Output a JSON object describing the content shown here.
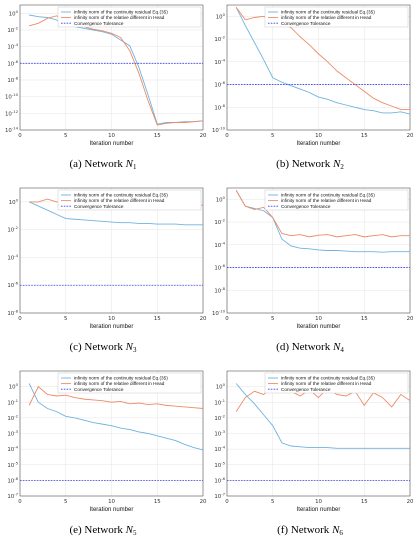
{
  "legend_labels": {
    "cont": "infinity norm of the continuity residual Eq.(35)",
    "head": "infinity norm of the relative different in Head",
    "tol": "Convergence Tolerance"
  },
  "colors": {
    "cont": "#6fb3e0",
    "head": "#ee8a68",
    "tol": "#3a3cf0"
  },
  "chart_data": [
    {
      "type": "line",
      "caption": {
        "prefix": "(a) Network",
        "symbol": "N",
        "sub": "1"
      },
      "xlabel": "Iteration number",
      "xlim": [
        0,
        20
      ],
      "x_ticks": [
        0,
        5,
        10,
        15,
        20
      ],
      "y_scale": "log",
      "ylim_exp": [
        -14,
        1
      ],
      "y_tick_exps": [
        0,
        -2,
        -4,
        -6,
        -8,
        -10,
        -12,
        -14
      ],
      "grid": true,
      "legend_position": "top-right",
      "series": [
        {
          "key": "cont",
          "x": [
            1,
            2,
            3,
            4,
            5,
            6,
            7,
            8,
            9,
            10,
            11,
            12,
            13,
            14,
            15,
            16,
            17,
            18,
            19,
            20
          ],
          "y_exp": [
            -0.2,
            -0.4,
            -0.5,
            -0.8,
            -1.4,
            -1.6,
            -1.8,
            -2,
            -2.2,
            -2.5,
            -3.2,
            -3.9,
            -6.5,
            -9.8,
            -13.3,
            -13.1,
            -13.1,
            -13.0,
            -13.0,
            -12.9
          ]
        },
        {
          "key": "head",
          "x": [
            1,
            2,
            3,
            4,
            5,
            6,
            7,
            8,
            9,
            10,
            11,
            12,
            13,
            14,
            15,
            16,
            17,
            18,
            19,
            20
          ],
          "y_exp": [
            -1.5,
            -1.2,
            -0.6,
            -0.3,
            -0.8,
            -1.3,
            -1.6,
            -1.9,
            -2.1,
            -2.4,
            -2.9,
            -4.5,
            -7.2,
            -10.5,
            -13.4,
            -13.2,
            -13.1,
            -13.1,
            -13.0,
            -12.9
          ]
        },
        {
          "key": "tol",
          "x": [
            0,
            20
          ],
          "y_exp": [
            -6,
            -6
          ]
        }
      ]
    },
    {
      "type": "line",
      "caption": {
        "prefix": "(b) Network",
        "symbol": "N",
        "sub": "2"
      },
      "xlabel": "Iteration number",
      "xlim": [
        0,
        20
      ],
      "x_ticks": [
        0,
        5,
        10,
        15,
        20
      ],
      "y_scale": "log",
      "ylim_exp": [
        -10,
        1
      ],
      "y_tick_exps": [
        0,
        -2,
        -4,
        -6,
        -8,
        -10
      ],
      "grid": true,
      "legend_position": "top-right",
      "series": [
        {
          "key": "cont",
          "x": [
            1,
            2,
            3,
            4,
            5,
            6,
            7,
            8,
            9,
            10,
            11,
            12,
            13,
            14,
            15,
            16,
            17,
            18,
            19,
            20
          ],
          "y_exp": [
            0.8,
            -0.8,
            -2.3,
            -3.8,
            -5.4,
            -5.8,
            -6.1,
            -6.4,
            -6.7,
            -7.1,
            -7.3,
            -7.6,
            -7.8,
            -8,
            -8.2,
            -8.3,
            -8.5,
            -8.5,
            -8.4,
            -8.6
          ]
        },
        {
          "key": "head",
          "x": [
            1,
            2,
            3,
            4,
            5,
            6,
            7,
            8,
            9,
            10,
            11,
            12,
            13,
            14,
            15,
            16,
            17,
            18,
            19,
            20
          ],
          "y_exp": [
            0.8,
            -0.3,
            -0.1,
            0,
            -0.4,
            -0.6,
            -1.0,
            -1.8,
            -2.5,
            -3.3,
            -4.0,
            -4.8,
            -5.4,
            -6.0,
            -6.6,
            -7.2,
            -7.6,
            -7.9,
            -8.2,
            -8.2
          ]
        },
        {
          "key": "tol",
          "x": [
            0,
            20
          ],
          "y_exp": [
            -6,
            -6
          ]
        }
      ]
    },
    {
      "type": "line",
      "caption": {
        "prefix": "(c) Network",
        "symbol": "N",
        "sub": "3"
      },
      "xlabel": "Iteration number",
      "xlim": [
        0,
        20
      ],
      "x_ticks": [
        0,
        5,
        10,
        15,
        20
      ],
      "y_scale": "log",
      "ylim_exp": [
        -8,
        1
      ],
      "y_tick_exps": [
        0,
        -2,
        -4,
        -6,
        -8
      ],
      "grid": true,
      "legend_position": "top-right",
      "series": [
        {
          "key": "cont",
          "x": [
            1,
            2,
            3,
            4,
            5,
            6,
            7,
            8,
            9,
            10,
            11,
            12,
            13,
            14,
            15,
            16,
            17,
            18,
            19,
            20
          ],
          "y_exp": [
            0,
            -0.3,
            -0.6,
            -0.9,
            -1.2,
            -1.25,
            -1.3,
            -1.35,
            -1.4,
            -1.45,
            -1.5,
            -1.5,
            -1.55,
            -1.55,
            -1.6,
            -1.6,
            -1.6,
            -1.65,
            -1.65,
            -1.65
          ]
        },
        {
          "key": "head",
          "x": [
            1,
            2,
            3,
            4,
            5,
            6,
            7,
            8,
            9,
            10,
            11,
            12,
            13,
            14,
            15,
            16,
            17,
            18,
            19,
            20
          ],
          "y_exp": [
            0,
            0,
            0.2,
            0,
            0,
            -0.05,
            0,
            -0.05,
            -0.1,
            -0.1,
            -0.1,
            -0.15,
            -0.15,
            -0.2,
            -0.15,
            -0.2,
            -0.2,
            -0.25,
            -0.2,
            -0.25
          ]
        },
        {
          "key": "tol",
          "x": [
            0,
            20
          ],
          "y_exp": [
            -6,
            -6
          ]
        }
      ]
    },
    {
      "type": "line",
      "caption": {
        "prefix": "(d) Network",
        "symbol": "N",
        "sub": "4"
      },
      "xlabel": "Iteration number",
      "xlim": [
        0,
        20
      ],
      "x_ticks": [
        0,
        5,
        10,
        15,
        20
      ],
      "y_scale": "log",
      "ylim_exp": [
        -10,
        1
      ],
      "y_tick_exps": [
        0,
        -2,
        -4,
        -6,
        -8,
        -10
      ],
      "grid": true,
      "legend_position": "top-right",
      "series": [
        {
          "key": "cont",
          "x": [
            1,
            2,
            3,
            4,
            5,
            6,
            7,
            8,
            9,
            10,
            11,
            12,
            13,
            14,
            15,
            16,
            17,
            18,
            19,
            20
          ],
          "y_exp": [
            0.8,
            -0.6,
            -0.8,
            -1.0,
            -1.6,
            -3.5,
            -4.1,
            -4.3,
            -4.35,
            -4.45,
            -4.5,
            -4.5,
            -4.55,
            -4.6,
            -4.6,
            -4.6,
            -4.65,
            -4.6,
            -4.6,
            -4.6
          ]
        },
        {
          "key": "head",
          "x": [
            1,
            2,
            3,
            4,
            5,
            6,
            7,
            8,
            9,
            10,
            11,
            12,
            13,
            14,
            15,
            16,
            17,
            18,
            19,
            20
          ],
          "y_exp": [
            0.8,
            -0.6,
            -0.9,
            -0.7,
            -1.6,
            -3.0,
            -3.2,
            -3.1,
            -3.3,
            -3.15,
            -3.1,
            -3.3,
            -3.2,
            -3.1,
            -3.3,
            -3.2,
            -3.1,
            -3.3,
            -3.2,
            -3.2
          ]
        },
        {
          "key": "tol",
          "x": [
            0,
            20
          ],
          "y_exp": [
            -6,
            -6
          ]
        }
      ]
    },
    {
      "type": "line",
      "caption": {
        "prefix": "(e) Network",
        "symbol": "N",
        "sub": "5"
      },
      "xlabel": "Iteration number",
      "xlim": [
        0,
        20
      ],
      "x_ticks": [
        0,
        5,
        10,
        15,
        20
      ],
      "y_scale": "log",
      "ylim_exp": [
        -7,
        1
      ],
      "y_tick_exps": [
        0,
        -1,
        -2,
        -3,
        -4,
        -5,
        -6,
        -7
      ],
      "grid": true,
      "legend_position": "top-right",
      "series": [
        {
          "key": "cont",
          "x": [
            1,
            2,
            3,
            4,
            5,
            6,
            7,
            8,
            9,
            10,
            11,
            12,
            13,
            14,
            15,
            16,
            17,
            18,
            19,
            20
          ],
          "y_exp": [
            0.2,
            -1.0,
            -1.4,
            -1.6,
            -1.9,
            -2.0,
            -2.15,
            -2.3,
            -2.4,
            -2.5,
            -2.65,
            -2.75,
            -2.9,
            -3.0,
            -3.15,
            -3.3,
            -3.45,
            -3.7,
            -3.9,
            -4.05
          ]
        },
        {
          "key": "head",
          "x": [
            1,
            2,
            3,
            4,
            5,
            6,
            7,
            8,
            9,
            10,
            11,
            12,
            13,
            14,
            15,
            16,
            17,
            18,
            19,
            20
          ],
          "y_exp": [
            -1.2,
            0,
            -0.5,
            -0.6,
            -0.55,
            -0.7,
            -0.8,
            -0.85,
            -0.9,
            -1.0,
            -0.95,
            -1.1,
            -1.05,
            -1.15,
            -1.1,
            -1.2,
            -1.25,
            -1.3,
            -1.35,
            -1.4
          ]
        },
        {
          "key": "tol",
          "x": [
            0,
            20
          ],
          "y_exp": [
            -6,
            -6
          ]
        }
      ]
    },
    {
      "type": "line",
      "caption": {
        "prefix": "(f) Network",
        "symbol": "N",
        "sub": "6"
      },
      "xlabel": "Iteration number",
      "xlim": [
        0,
        20
      ],
      "x_ticks": [
        0,
        5,
        10,
        15,
        20
      ],
      "y_scale": "log",
      "ylim_exp": [
        -7,
        1
      ],
      "y_tick_exps": [
        0,
        -1,
        -2,
        -3,
        -4,
        -5,
        -6,
        -7
      ],
      "grid": true,
      "legend_position": "top-right",
      "series": [
        {
          "key": "cont",
          "x": [
            1,
            2,
            3,
            4,
            5,
            6,
            7,
            8,
            9,
            10,
            11,
            12,
            13,
            14,
            15,
            16,
            17,
            18,
            19,
            20
          ],
          "y_exp": [
            0.2,
            -0.5,
            -1.1,
            -1.8,
            -2.5,
            -3.6,
            -3.8,
            -3.85,
            -3.9,
            -3.9,
            -3.9,
            -3.95,
            -3.95,
            -3.95,
            -3.95,
            -3.95,
            -3.95,
            -3.95,
            -3.95,
            -3.95
          ]
        },
        {
          "key": "head",
          "x": [
            1,
            2,
            3,
            4,
            5,
            6,
            7,
            8,
            9,
            10,
            11,
            12,
            13,
            14,
            15,
            16,
            17,
            18,
            19,
            20
          ],
          "y_exp": [
            -1.6,
            -0.7,
            -0.3,
            -0.5,
            0,
            -0.1,
            -0.3,
            -0.6,
            -0.2,
            -0.7,
            -0.1,
            -0.5,
            -0.6,
            -0.3,
            -1.2,
            -0.4,
            -0.7,
            -1.3,
            -0.5,
            -0.9
          ]
        },
        {
          "key": "tol",
          "x": [
            0,
            20
          ],
          "y_exp": [
            -6,
            -6
          ]
        }
      ]
    }
  ]
}
